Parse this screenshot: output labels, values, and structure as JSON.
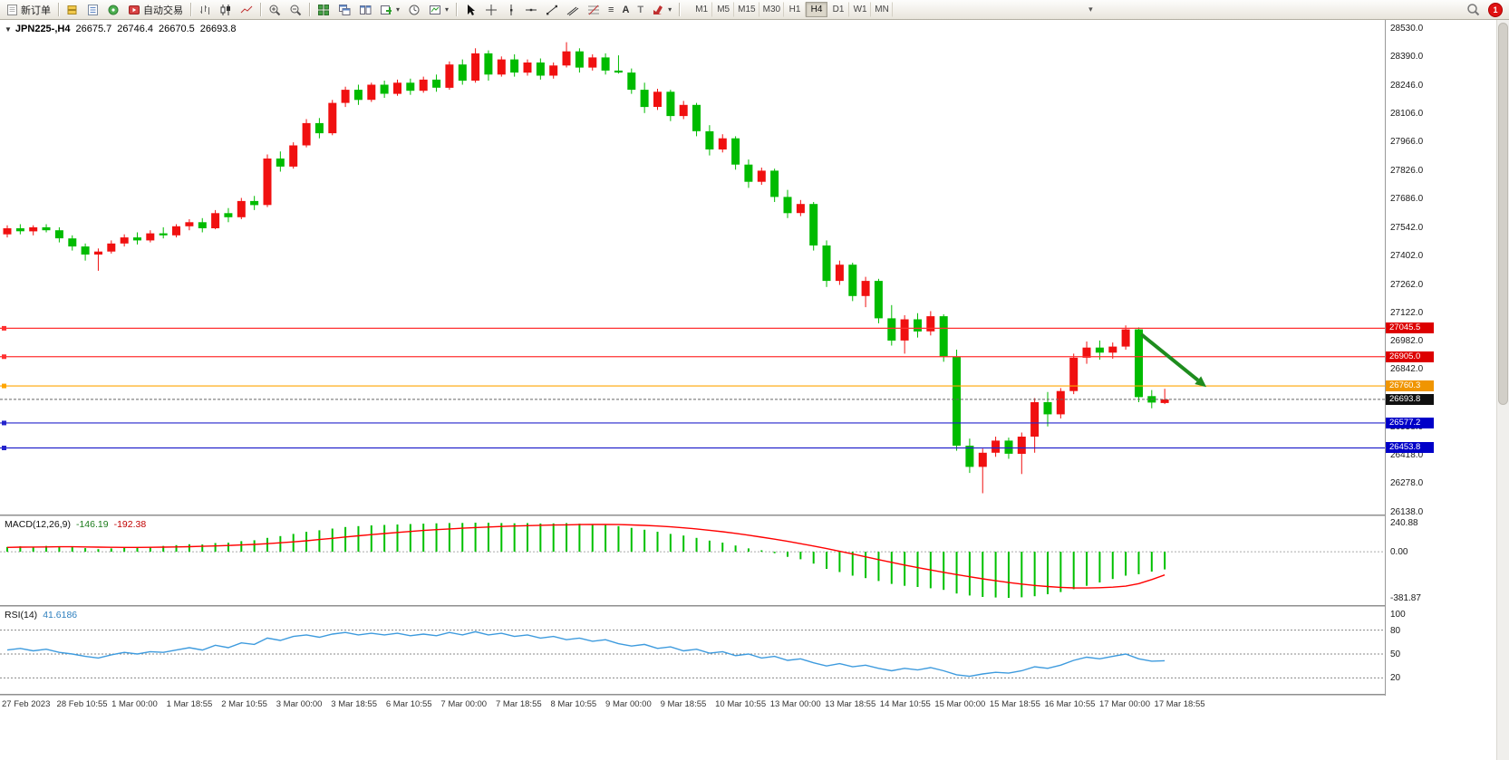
{
  "toolbar": {
    "new_order_label": "新订单",
    "autotrade_label": "自动交易",
    "timeframes": [
      "M1",
      "M5",
      "M15",
      "M30",
      "H1",
      "H4",
      "D1",
      "W1",
      "MN"
    ],
    "active_timeframe": "H4",
    "notification_count": "1"
  },
  "icons": {
    "collapse_arrow": "▼",
    "dropdown_chevron": "▾",
    "text_tool": "A",
    "label_tool": "T",
    "levels_tool": "≡"
  },
  "chart": {
    "symbol_tf": "JPN225-,H4",
    "open": "26675.7",
    "high": "26746.4",
    "low": "26670.5",
    "close": "26693.8"
  },
  "chart_data": {
    "type": "candlestick",
    "symbol": "JPN225-",
    "timeframe": "H4",
    "colors": {
      "bull": "#f01010",
      "bear": "#00bb00",
      "bg": "#ffffff"
    },
    "price_axis": {
      "max": 28530,
      "min": 26138,
      "labels": [
        28530,
        28390,
        28246,
        28106,
        27966,
        27826,
        27686,
        27542,
        27402,
        27262,
        27122,
        26982,
        26842,
        26698,
        26558,
        26418,
        26278,
        26138
      ]
    },
    "candles": [
      [
        27510,
        27555,
        27495,
        27540
      ],
      [
        27540,
        27560,
        27510,
        27525
      ],
      [
        27525,
        27555,
        27505,
        27545
      ],
      [
        27545,
        27560,
        27520,
        27530
      ],
      [
        27530,
        27545,
        27470,
        27490
      ],
      [
        27490,
        27505,
        27430,
        27450
      ],
      [
        27450,
        27465,
        27380,
        27410
      ],
      [
        27410,
        27440,
        27330,
        27425
      ],
      [
        27425,
        27480,
        27415,
        27465
      ],
      [
        27465,
        27510,
        27450,
        27495
      ],
      [
        27495,
        27520,
        27460,
        27480
      ],
      [
        27480,
        27530,
        27470,
        27515
      ],
      [
        27515,
        27545,
        27490,
        27505
      ],
      [
        27505,
        27560,
        27495,
        27550
      ],
      [
        27550,
        27585,
        27530,
        27570
      ],
      [
        27570,
        27590,
        27520,
        27540
      ],
      [
        27540,
        27630,
        27535,
        27615
      ],
      [
        27615,
        27640,
        27570,
        27595
      ],
      [
        27595,
        27690,
        27585,
        27675
      ],
      [
        27675,
        27700,
        27630,
        27655
      ],
      [
        27655,
        27905,
        27645,
        27885
      ],
      [
        27885,
        27920,
        27820,
        27845
      ],
      [
        27845,
        27965,
        27835,
        27950
      ],
      [
        27950,
        28080,
        27940,
        28060
      ],
      [
        28060,
        28085,
        27985,
        28010
      ],
      [
        28010,
        28175,
        28000,
        28160
      ],
      [
        28160,
        28240,
        28140,
        28225
      ],
      [
        28225,
        28250,
        28150,
        28175
      ],
      [
        28175,
        28260,
        28165,
        28250
      ],
      [
        28250,
        28270,
        28185,
        28205
      ],
      [
        28205,
        28275,
        28195,
        28260
      ],
      [
        28260,
        28280,
        28200,
        28220
      ],
      [
        28220,
        28290,
        28210,
        28275
      ],
      [
        28275,
        28300,
        28215,
        28235
      ],
      [
        28235,
        28365,
        28225,
        28350
      ],
      [
        28350,
        28375,
        28250,
        28270
      ],
      [
        28270,
        28430,
        28260,
        28405
      ],
      [
        28405,
        28420,
        28270,
        28300
      ],
      [
        28300,
        28390,
        28290,
        28375
      ],
      [
        28375,
        28400,
        28290,
        28310
      ],
      [
        28310,
        28375,
        28295,
        28360
      ],
      [
        28360,
        28380,
        28275,
        28295
      ],
      [
        28295,
        28360,
        28280,
        28345
      ],
      [
        28345,
        28460,
        28335,
        28415
      ],
      [
        28415,
        28430,
        28310,
        28335
      ],
      [
        28335,
        28400,
        28320,
        28385
      ],
      [
        28385,
        28405,
        28300,
        28320
      ],
      [
        28320,
        28395,
        28305,
        28310
      ],
      [
        28310,
        28330,
        28205,
        28225
      ],
      [
        28225,
        28260,
        28110,
        28140
      ],
      [
        28140,
        28230,
        28125,
        28215
      ],
      [
        28215,
        28225,
        28070,
        28095
      ],
      [
        28095,
        28170,
        28080,
        28150
      ],
      [
        28150,
        28160,
        27995,
        28020
      ],
      [
        28020,
        28050,
        27900,
        27930
      ],
      [
        27930,
        28005,
        27915,
        27985
      ],
      [
        27985,
        27995,
        27830,
        27855
      ],
      [
        27855,
        27880,
        27740,
        27770
      ],
      [
        27770,
        27840,
        27755,
        27825
      ],
      [
        27825,
        27835,
        27670,
        27695
      ],
      [
        27695,
        27730,
        27590,
        27615
      ],
      [
        27615,
        27680,
        27600,
        27660
      ],
      [
        27660,
        27670,
        27430,
        27455
      ],
      [
        27455,
        27480,
        27250,
        27280
      ],
      [
        27280,
        27380,
        27260,
        27360
      ],
      [
        27360,
        27370,
        27180,
        27205
      ],
      [
        27205,
        27300,
        27150,
        27280
      ],
      [
        27280,
        27290,
        27070,
        27095
      ],
      [
        27095,
        27160,
        26960,
        26985
      ],
      [
        26985,
        27110,
        26920,
        27090
      ],
      [
        27090,
        27120,
        27000,
        27030
      ],
      [
        27030,
        27130,
        27010,
        27105
      ],
      [
        27105,
        27115,
        26880,
        26905
      ],
      [
        26905,
        26940,
        26440,
        26465
      ],
      [
        26465,
        26500,
        26330,
        26360
      ],
      [
        26360,
        26450,
        26230,
        26430
      ],
      [
        26430,
        26510,
        26410,
        26490
      ],
      [
        26490,
        26505,
        26400,
        26425
      ],
      [
        26425,
        26530,
        26325,
        26510
      ],
      [
        26510,
        26700,
        26430,
        26680
      ],
      [
        26680,
        26730,
        26560,
        26620
      ],
      [
        26620,
        26750,
        26600,
        26735
      ],
      [
        26735,
        26920,
        26720,
        26900
      ],
      [
        26900,
        26980,
        26870,
        26950
      ],
      [
        26950,
        26985,
        26890,
        26925
      ],
      [
        26925,
        26975,
        26895,
        26955
      ],
      [
        26955,
        27060,
        26940,
        27040
      ],
      [
        27040,
        27050,
        26680,
        26705
      ],
      [
        26710,
        26740,
        26650,
        26678
      ],
      [
        26675.7,
        26746.4,
        26670.5,
        26693.8
      ]
    ],
    "hlines": [
      {
        "price": 27045.5,
        "label": "27045.5",
        "color": "#ff3030",
        "tag": "#dd0000"
      },
      {
        "price": 26905.0,
        "label": "26905.0",
        "color": "#ff3030",
        "tag": "#dd0000"
      },
      {
        "price": 26760.3,
        "label": "26760.3",
        "color": "#ffa500",
        "tag": "#f09500"
      },
      {
        "price": 26577.2,
        "label": "26577.2",
        "color": "#2424cc",
        "tag": "#0000c8"
      },
      {
        "price": 26453.8,
        "label": "26453.8",
        "color": "#2424cc",
        "tag": "#0000c8"
      }
    ],
    "bid_line": {
      "price": 26693.8,
      "label": "26693.8",
      "color": "#666666",
      "tag": "#101010"
    },
    "arrow": {
      "from_index": 87.2,
      "from_price": 27015,
      "to_index": 92.2,
      "to_price": 26755,
      "color": "#1e8c1e"
    },
    "macd": {
      "name": "MACD(12,26,9)",
      "value_main": "-146.19",
      "value_signal": "-192.38",
      "hist_color": "#00c000",
      "signal_color": "#ff0000",
      "scale": {
        "max": 240.88,
        "zero": 0.0,
        "min": -381.87
      },
      "main": [
        40,
        45,
        42,
        48,
        44,
        40,
        30,
        22,
        28,
        35,
        38,
        42,
        48,
        55,
        62,
        60,
        72,
        75,
        88,
        95,
        115,
        130,
        148,
        165,
        178,
        192,
        205,
        212,
        218,
        222,
        226,
        230,
        233,
        236,
        238,
        239,
        240.88,
        240,
        238,
        236,
        237,
        234,
        235,
        237,
        233,
        228,
        221,
        212,
        198,
        182,
        166,
        148,
        134,
        115,
        92,
        76,
        52,
        28,
        12,
        -12,
        -42,
        -62,
        -98,
        -142,
        -168,
        -198,
        -218,
        -242,
        -266,
        -282,
        -292,
        -302,
        -316,
        -346,
        -362,
        -374,
        -379,
        -381.87,
        -377,
        -368,
        -352,
        -334,
        -310,
        -282,
        -254,
        -226,
        -198,
        -186,
        -164,
        -146.19
      ],
      "signal": [
        36,
        38,
        39,
        40,
        41,
        41,
        40,
        38,
        37,
        36,
        36,
        37,
        38,
        40,
        42,
        45,
        48,
        52,
        56,
        61,
        67,
        74,
        82,
        91,
        101,
        111,
        122,
        132,
        142,
        151,
        160,
        168,
        176,
        183,
        189,
        195,
        200,
        205,
        209,
        213,
        216,
        219,
        221,
        223,
        225,
        226,
        226,
        225,
        222,
        218,
        213,
        206,
        198,
        189,
        178,
        166,
        152,
        137,
        121,
        104,
        86,
        67,
        47,
        26,
        4,
        -19,
        -42,
        -65,
        -88,
        -110,
        -131,
        -151,
        -170,
        -189,
        -207,
        -224,
        -240,
        -255,
        -268,
        -279,
        -288,
        -295,
        -299,
        -300,
        -298,
        -293,
        -285,
        -264,
        -230,
        -192.38
      ]
    },
    "rsi": {
      "name": "RSI(14)",
      "value": "41.6186",
      "color": "#3e9bde",
      "levels": [
        80,
        50,
        20
      ],
      "axis_labels": [
        100,
        80,
        50,
        20
      ],
      "values": [
        55,
        57,
        54,
        56,
        52,
        50,
        47,
        45,
        49,
        52,
        50,
        53,
        52,
        55,
        58,
        55,
        61,
        58,
        64,
        62,
        70,
        67,
        72,
        74,
        71,
        75,
        77,
        74,
        76,
        74,
        76,
        73,
        75,
        73,
        77,
        74,
        78,
        74,
        76,
        72,
        74,
        70,
        72,
        68,
        70,
        66,
        68,
        63,
        60,
        62,
        57,
        59,
        54,
        56,
        51,
        53,
        48,
        50,
        45,
        47,
        42,
        44,
        39,
        35,
        38,
        34,
        36,
        32,
        29,
        32,
        30,
        33,
        29,
        24,
        22,
        25,
        27,
        26,
        29,
        34,
        32,
        36,
        42,
        46,
        44,
        47,
        50,
        44,
        41,
        41.6186
      ]
    },
    "time_axis": [
      "27 Feb 2023",
      "28 Feb 10:55",
      "1 Mar 00:00",
      "1 Mar 18:55",
      "2 Mar 10:55",
      "3 Mar 00:00",
      "3 Mar 18:55",
      "6 Mar 10:55",
      "7 Mar 00:00",
      "7 Mar 18:55",
      "8 Mar 10:55",
      "9 Mar 00:00",
      "9 Mar 18:55",
      "10 Mar 10:55",
      "13 Mar 00:00",
      "13 Mar 18:55",
      "14 Mar 10:55",
      "15 Mar 00:00",
      "15 Mar 18:55",
      "16 Mar 10:55",
      "17 Mar 00:00",
      "17 Mar 18:55"
    ]
  }
}
